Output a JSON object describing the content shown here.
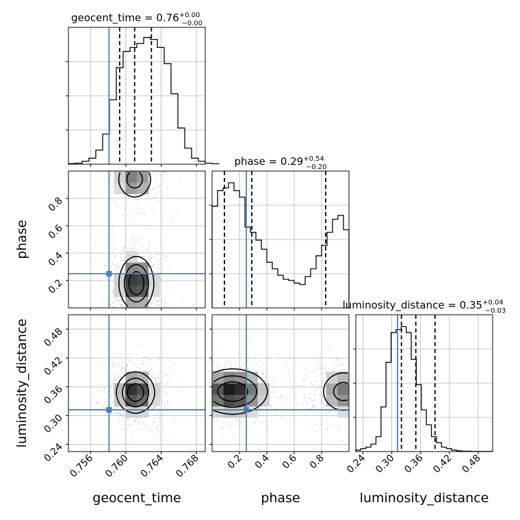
{
  "chart_data": {
    "type": "corner",
    "parameters": [
      {
        "name": "geocent_time",
        "range": [
          0.7535,
          0.769
        ],
        "ticks": [
          "0.756",
          "0.760",
          "0.764",
          "0.768"
        ],
        "tick_values": [
          0.756,
          0.76,
          0.764,
          0.768
        ],
        "injection": 0.7581,
        "median": 0.761,
        "quantiles": [
          0.7593,
          0.761,
          0.7629
        ],
        "title": {
          "main": "geocent_time = 0.76",
          "plus": "+0.00",
          "minus": "−0.00"
        },
        "hist": {
          "edges_start": 0.7535,
          "bin_width": 0.000775,
          "counts": [
            0.3,
            0.5,
            1.5,
            3.0,
            7.0,
            15.0,
            32.0,
            48.0,
            56.0,
            58.0,
            60.0,
            63.0,
            62.0,
            58.0,
            50.0,
            35.0,
            18.0,
            8.0,
            3.0,
            1.5,
            0.5,
            0.2
          ],
          "ymax": 68
        }
      },
      {
        "name": "phase",
        "range": [
          0.0,
          1.0
        ],
        "ticks": [
          "0.2",
          "0.4",
          "0.6",
          "0.8"
        ],
        "tick_values": [
          0.2,
          0.4,
          0.6,
          0.8
        ],
        "injection": 0.25,
        "median": 0.29,
        "quantiles": [
          0.09,
          0.29,
          0.83
        ],
        "title": {
          "main": "phase = 0.29",
          "plus": "+0.54",
          "minus": "−0.20"
        },
        "hist": {
          "edges_start": 0.0,
          "bin_width": 0.04,
          "counts": [
            78,
            90,
            92,
            96,
            90,
            85,
            62,
            58,
            52,
            45,
            35,
            30,
            25,
            22,
            21,
            19,
            18,
            24,
            30,
            40,
            48,
            58,
            68,
            71,
            60
          ],
          "ymax": 105
        }
      },
      {
        "name": "luminosity_distance",
        "range": [
          0.225,
          0.51
        ],
        "ticks": [
          "0.24",
          "0.30",
          "0.36",
          "0.42",
          "0.48"
        ],
        "tick_values": [
          0.24,
          0.3,
          0.36,
          0.42,
          0.48
        ],
        "injection": 0.312,
        "median": 0.35,
        "quantiles": [
          0.32,
          0.35,
          0.39
        ],
        "title": {
          "main": "luminosity_distance = 0.35",
          "plus": "+0.04",
          "minus": "−0.03"
        },
        "hist": {
          "edges_start": 0.225,
          "bin_width": 0.0105,
          "counts": [
            1,
            2,
            3,
            5,
            10,
            30,
            60,
            80,
            82,
            84,
            80,
            62,
            45,
            28,
            18,
            10,
            6,
            3,
            2,
            1,
            0.5,
            0.3,
            0.2,
            0.1,
            0.1,
            0.1,
            0.1
          ],
          "ymax": 92
        }
      }
    ],
    "pairs": [
      {
        "x": 0,
        "y": 1,
        "peaks": [
          {
            "x": 0.7612,
            "y": 0.18,
            "sx": 0.001,
            "sy": 0.1,
            "w": 1.0
          },
          {
            "x": 0.761,
            "y": 0.94,
            "sx": 0.0011,
            "sy": 0.08,
            "w": 0.55
          }
        ]
      },
      {
        "x": 0,
        "y": 2,
        "peaks": [
          {
            "x": 0.7611,
            "y": 0.348,
            "sx": 0.0011,
            "sy": 0.022,
            "w": 1.0
          }
        ]
      },
      {
        "x": 1,
        "y": 2,
        "peaks": [
          {
            "x": 0.15,
            "y": 0.35,
            "sx": 0.13,
            "sy": 0.024,
            "w": 1.0
          },
          {
            "x": 0.96,
            "y": 0.35,
            "sx": 0.09,
            "sy": 0.024,
            "w": 0.55
          }
        ]
      }
    ],
    "colors": {
      "injection": "#4682b4",
      "hist": "#000000",
      "grid": "#b0b0b0",
      "samples": "#9a9a9a"
    },
    "grid": true
  }
}
